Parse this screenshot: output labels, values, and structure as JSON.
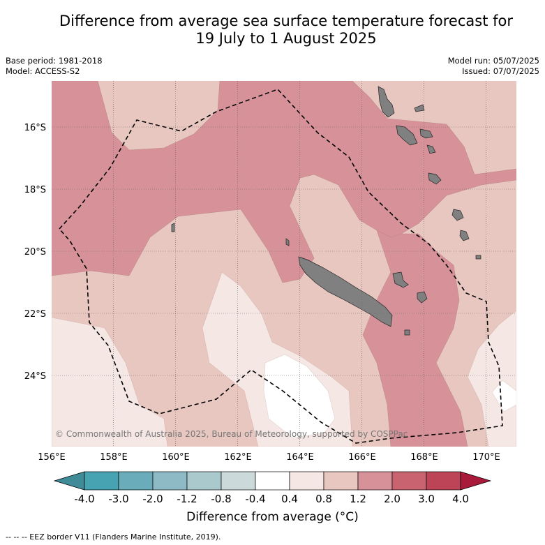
{
  "title_line1": "Difference from average sea surface temperature forecast for",
  "title_line2": "19 July to 1 August 2025",
  "base_period": "Base period: 1981-2018",
  "model": "Model: ACCESS-S2",
  "model_run": "Model run: 05/07/2025",
  "issued": "Issued: 07/07/2025",
  "copyright": "© Commonwealth of Australia 2025, Bureau of Meteorology, supported by COSPPac",
  "footer": "-- -- -- EEZ border V11 (Flanders Marine Institute, 2019).",
  "map": {
    "lon_range": [
      156,
      171
    ],
    "lat_range": [
      -26.0,
      -14.5
    ],
    "lon_ticks": [
      "156°E",
      "158°E",
      "160°E",
      "162°E",
      "164°E",
      "166°E",
      "168°E",
      "170°E"
    ],
    "lat_ticks": [
      "16°S",
      "18°S",
      "20°S",
      "22°S",
      "24°S"
    ],
    "lat_tick_values": [
      -16,
      -18,
      -20,
      -22,
      -24
    ],
    "lon_tick_values": [
      156,
      158,
      160,
      162,
      164,
      166,
      168,
      170
    ],
    "grid": true
  },
  "colorbar": {
    "title": "Difference from average (°C)",
    "labels": [
      "-4.0",
      "-3.0",
      "-2.0",
      "-1.2",
      "-0.8",
      "-0.4",
      "0.4",
      "0.8",
      "1.2",
      "2.0",
      "3.0",
      "4.0"
    ],
    "colors": [
      "#3f8b97",
      "#47a3b1",
      "#6aacb9",
      "#8dbac5",
      "#a9c9cd",
      "#ccd9da",
      "#ffffff",
      "#f5e7e4",
      "#e8c7c0",
      "#d69199",
      "#c96370",
      "#bd4457",
      "#a8193a"
    ]
  },
  "colors": {
    "land": "#808080",
    "eez": "#000000",
    "grid": "#666666"
  }
}
